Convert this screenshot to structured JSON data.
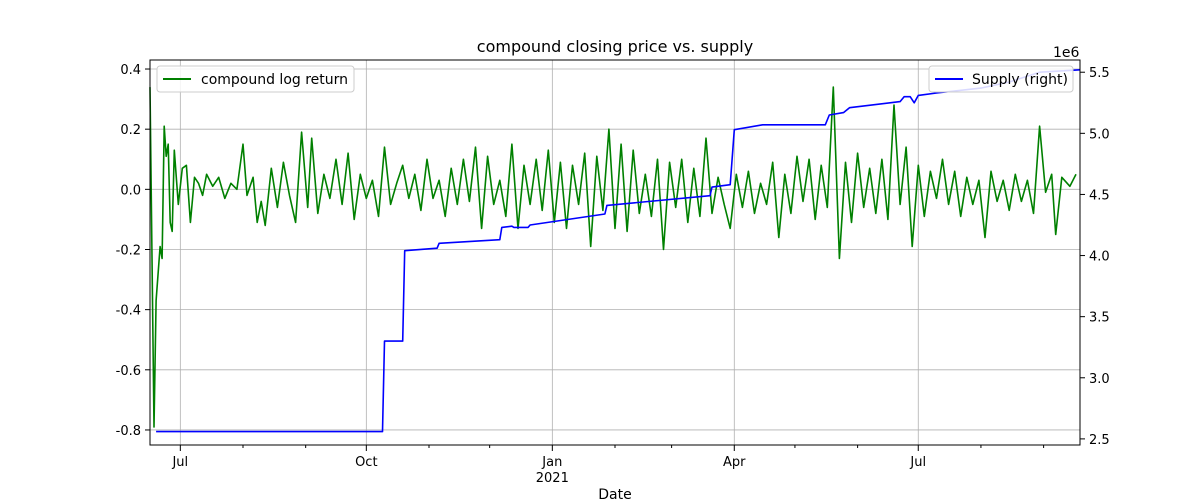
{
  "chart_data": {
    "type": "line",
    "title": "compound closing price vs. supply",
    "xlabel": "Date",
    "x_tick_labels": [
      "Jul",
      "Oct",
      "Jan",
      "Apr",
      "Jul"
    ],
    "x_tick_dates": [
      "2020-07-01",
      "2020-10-01",
      "2021-01-01",
      "2021-04-01",
      "2021-07-01"
    ],
    "x_year_label": "2021",
    "x_range": [
      "2020-06-16",
      "2021-09-19"
    ],
    "y_left": {
      "range": [
        -0.85,
        0.43
      ],
      "ticks": [
        -0.8,
        -0.6,
        -0.4,
        -0.2,
        0.0,
        0.2,
        0.4
      ]
    },
    "y_right": {
      "range": [
        2.45,
        5.6
      ],
      "ticks": [
        2.5,
        3.0,
        3.5,
        4.0,
        4.5,
        5.0,
        5.5
      ],
      "offset_label": "1e6"
    },
    "grid": true,
    "series": [
      {
        "name": "compound log return",
        "axis": "left",
        "color": "#008000",
        "legend_position": "upper-left",
        "points": [
          [
            "2020-06-16",
            0.34
          ],
          [
            "2020-06-18",
            -0.79
          ],
          [
            "2020-06-19",
            -0.37
          ],
          [
            "2020-06-21",
            -0.19
          ],
          [
            "2020-06-22",
            -0.23
          ],
          [
            "2020-06-23",
            0.21
          ],
          [
            "2020-06-24",
            0.11
          ],
          [
            "2020-06-25",
            0.15
          ],
          [
            "2020-06-26",
            -0.11
          ],
          [
            "2020-06-27",
            -0.14
          ],
          [
            "2020-06-28",
            0.13
          ],
          [
            "2020-06-30",
            -0.05
          ],
          [
            "2020-07-02",
            0.07
          ],
          [
            "2020-07-04",
            0.08
          ],
          [
            "2020-07-06",
            -0.11
          ],
          [
            "2020-07-08",
            0.04
          ],
          [
            "2020-07-10",
            0.02
          ],
          [
            "2020-07-12",
            -0.02
          ],
          [
            "2020-07-14",
            0.05
          ],
          [
            "2020-07-17",
            0.01
          ],
          [
            "2020-07-20",
            0.04
          ],
          [
            "2020-07-23",
            -0.03
          ],
          [
            "2020-07-26",
            0.02
          ],
          [
            "2020-07-29",
            0.0
          ],
          [
            "2020-08-01",
            0.15
          ],
          [
            "2020-08-03",
            -0.02
          ],
          [
            "2020-08-06",
            0.04
          ],
          [
            "2020-08-08",
            -0.11
          ],
          [
            "2020-08-10",
            -0.04
          ],
          [
            "2020-08-12",
            -0.12
          ],
          [
            "2020-08-15",
            0.07
          ],
          [
            "2020-08-18",
            -0.06
          ],
          [
            "2020-08-21",
            0.09
          ],
          [
            "2020-08-24",
            -0.02
          ],
          [
            "2020-08-27",
            -0.11
          ],
          [
            "2020-08-30",
            0.19
          ],
          [
            "2020-09-02",
            -0.06
          ],
          [
            "2020-09-04",
            0.17
          ],
          [
            "2020-09-07",
            -0.08
          ],
          [
            "2020-09-10",
            0.05
          ],
          [
            "2020-09-13",
            -0.03
          ],
          [
            "2020-09-16",
            0.1
          ],
          [
            "2020-09-19",
            -0.05
          ],
          [
            "2020-09-22",
            0.12
          ],
          [
            "2020-09-25",
            -0.1
          ],
          [
            "2020-09-28",
            0.05
          ],
          [
            "2020-10-01",
            -0.03
          ],
          [
            "2020-10-04",
            0.03
          ],
          [
            "2020-10-07",
            -0.09
          ],
          [
            "2020-10-10",
            0.14
          ],
          [
            "2020-10-13",
            -0.05
          ],
          [
            "2020-10-16",
            0.02
          ],
          [
            "2020-10-19",
            0.08
          ],
          [
            "2020-10-22",
            -0.03
          ],
          [
            "2020-10-25",
            0.05
          ],
          [
            "2020-10-28",
            -0.07
          ],
          [
            "2020-10-31",
            0.1
          ],
          [
            "2020-11-03",
            -0.03
          ],
          [
            "2020-11-06",
            0.03
          ],
          [
            "2020-11-09",
            -0.09
          ],
          [
            "2020-11-12",
            0.07
          ],
          [
            "2020-11-15",
            -0.05
          ],
          [
            "2020-11-18",
            0.1
          ],
          [
            "2020-11-21",
            -0.04
          ],
          [
            "2020-11-24",
            0.14
          ],
          [
            "2020-11-27",
            -0.13
          ],
          [
            "2020-11-30",
            0.11
          ],
          [
            "2020-12-03",
            -0.05
          ],
          [
            "2020-12-06",
            0.03
          ],
          [
            "2020-12-09",
            -0.09
          ],
          [
            "2020-12-12",
            0.15
          ],
          [
            "2020-12-15",
            -0.13
          ],
          [
            "2020-12-18",
            0.08
          ],
          [
            "2020-12-21",
            -0.05
          ],
          [
            "2020-12-24",
            0.1
          ],
          [
            "2020-12-27",
            -0.07
          ],
          [
            "2020-12-30",
            0.13
          ],
          [
            "2021-01-02",
            -0.11
          ],
          [
            "2021-01-05",
            0.09
          ],
          [
            "2021-01-08",
            -0.13
          ],
          [
            "2021-01-11",
            0.08
          ],
          [
            "2021-01-14",
            -0.05
          ],
          [
            "2021-01-17",
            0.12
          ],
          [
            "2021-01-20",
            -0.19
          ],
          [
            "2021-01-23",
            0.11
          ],
          [
            "2021-01-26",
            -0.07
          ],
          [
            "2021-01-29",
            0.2
          ],
          [
            "2021-02-01",
            -0.13
          ],
          [
            "2021-02-04",
            0.15
          ],
          [
            "2021-02-07",
            -0.14
          ],
          [
            "2021-02-10",
            0.13
          ],
          [
            "2021-02-13",
            -0.08
          ],
          [
            "2021-02-16",
            0.05
          ],
          [
            "2021-02-19",
            -0.09
          ],
          [
            "2021-02-22",
            0.1
          ],
          [
            "2021-02-25",
            -0.2
          ],
          [
            "2021-02-28",
            0.09
          ],
          [
            "2021-03-03",
            -0.06
          ],
          [
            "2021-03-06",
            0.1
          ],
          [
            "2021-03-09",
            -0.11
          ],
          [
            "2021-03-12",
            0.07
          ],
          [
            "2021-03-15",
            -0.09
          ],
          [
            "2021-03-18",
            0.17
          ],
          [
            "2021-03-21",
            -0.08
          ],
          [
            "2021-03-24",
            0.04
          ],
          [
            "2021-03-27",
            -0.05
          ],
          [
            "2021-03-30",
            -0.13
          ],
          [
            "2021-04-02",
            0.05
          ],
          [
            "2021-04-05",
            -0.06
          ],
          [
            "2021-04-08",
            0.06
          ],
          [
            "2021-04-11",
            -0.08
          ],
          [
            "2021-04-14",
            0.02
          ],
          [
            "2021-04-17",
            -0.05
          ],
          [
            "2021-04-20",
            0.09
          ],
          [
            "2021-04-23",
            -0.16
          ],
          [
            "2021-04-26",
            0.05
          ],
          [
            "2021-04-29",
            -0.08
          ],
          [
            "2021-05-02",
            0.11
          ],
          [
            "2021-05-05",
            -0.04
          ],
          [
            "2021-05-08",
            0.1
          ],
          [
            "2021-05-11",
            -0.1
          ],
          [
            "2021-05-14",
            0.08
          ],
          [
            "2021-05-17",
            -0.06
          ],
          [
            "2021-05-20",
            0.34
          ],
          [
            "2021-05-23",
            -0.23
          ],
          [
            "2021-05-26",
            0.09
          ],
          [
            "2021-05-29",
            -0.11
          ],
          [
            "2021-06-01",
            0.12
          ],
          [
            "2021-06-04",
            -0.06
          ],
          [
            "2021-06-07",
            0.07
          ],
          [
            "2021-06-10",
            -0.08
          ],
          [
            "2021-06-13",
            0.1
          ],
          [
            "2021-06-16",
            -0.1
          ],
          [
            "2021-06-19",
            0.28
          ],
          [
            "2021-06-22",
            -0.05
          ],
          [
            "2021-06-25",
            0.14
          ],
          [
            "2021-06-28",
            -0.19
          ],
          [
            "2021-07-01",
            0.08
          ],
          [
            "2021-07-04",
            -0.09
          ],
          [
            "2021-07-07",
            0.06
          ],
          [
            "2021-07-10",
            -0.03
          ],
          [
            "2021-07-13",
            0.1
          ],
          [
            "2021-07-16",
            -0.05
          ],
          [
            "2021-07-19",
            0.06
          ],
          [
            "2021-07-22",
            -0.09
          ],
          [
            "2021-07-25",
            0.04
          ],
          [
            "2021-07-28",
            -0.05
          ],
          [
            "2021-07-31",
            0.03
          ],
          [
            "2021-08-03",
            -0.16
          ],
          [
            "2021-08-06",
            0.06
          ],
          [
            "2021-08-09",
            -0.04
          ],
          [
            "2021-08-12",
            0.03
          ],
          [
            "2021-08-15",
            -0.07
          ],
          [
            "2021-08-18",
            0.05
          ],
          [
            "2021-08-21",
            -0.04
          ],
          [
            "2021-08-24",
            0.03
          ],
          [
            "2021-08-27",
            -0.08
          ],
          [
            "2021-08-30",
            0.21
          ],
          [
            "2021-09-02",
            -0.01
          ],
          [
            "2021-09-05",
            0.05
          ],
          [
            "2021-09-07",
            -0.15
          ],
          [
            "2021-09-10",
            0.04
          ],
          [
            "2021-09-14",
            0.01
          ],
          [
            "2021-09-17",
            0.05
          ]
        ]
      },
      {
        "name": "Supply (right)",
        "axis": "right",
        "color": "#0000ff",
        "legend_position": "upper-right",
        "points": [
          [
            "2020-06-19",
            2.56
          ],
          [
            "2020-10-09",
            2.56
          ],
          [
            "2020-10-10",
            3.3
          ],
          [
            "2020-10-19",
            3.3
          ],
          [
            "2020-10-20",
            4.04
          ],
          [
            "2020-11-05",
            4.06
          ],
          [
            "2020-11-06",
            4.1
          ],
          [
            "2020-12-06",
            4.13
          ],
          [
            "2020-12-07",
            4.23
          ],
          [
            "2020-12-12",
            4.24
          ],
          [
            "2020-12-13",
            4.23
          ],
          [
            "2020-12-20",
            4.23
          ],
          [
            "2020-12-21",
            4.25
          ],
          [
            "2021-01-27",
            4.34
          ],
          [
            "2021-01-28",
            4.41
          ],
          [
            "2021-03-20",
            4.49
          ],
          [
            "2021-03-21",
            4.56
          ],
          [
            "2021-03-30",
            4.58
          ],
          [
            "2021-04-01",
            5.03
          ],
          [
            "2021-04-15",
            5.07
          ],
          [
            "2021-05-16",
            5.07
          ],
          [
            "2021-05-18",
            5.15
          ],
          [
            "2021-05-25",
            5.17
          ],
          [
            "2021-05-28",
            5.21
          ],
          [
            "2021-06-22",
            5.26
          ],
          [
            "2021-06-24",
            5.3
          ],
          [
            "2021-06-27",
            5.3
          ],
          [
            "2021-06-29",
            5.25
          ],
          [
            "2021-07-01",
            5.31
          ],
          [
            "2021-07-10",
            5.33
          ],
          [
            "2021-08-01",
            5.37
          ],
          [
            "2021-08-15",
            5.42
          ],
          [
            "2021-08-30",
            5.5
          ],
          [
            "2021-09-19",
            5.52
          ]
        ]
      }
    ]
  }
}
